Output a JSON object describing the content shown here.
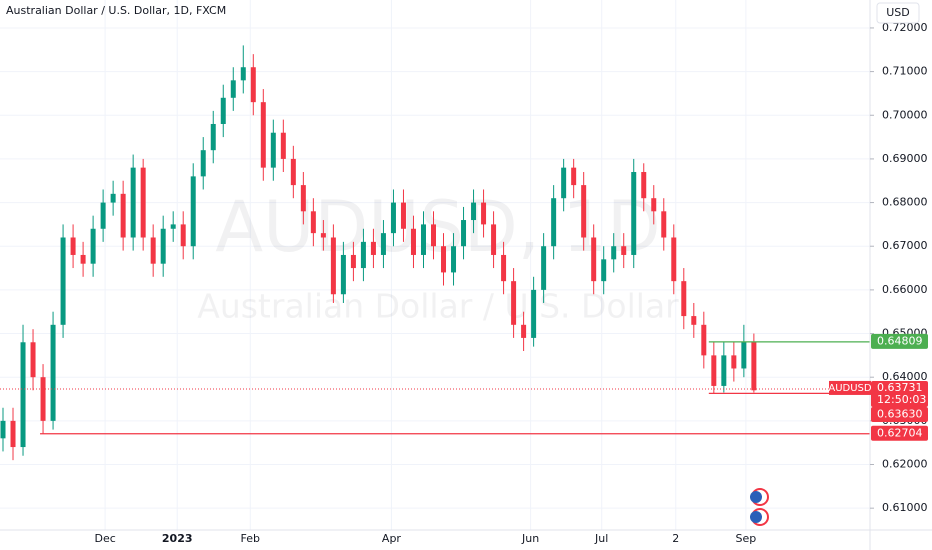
{
  "chart_data": {
    "type": "candlestick",
    "title": "Australian Dollar / U.S. Dollar, 1D, FXCM",
    "watermark": "AUDUSD, 1D",
    "watermark_subtitle": "Australian Dollar / U.S. Dollar",
    "currency": "USD",
    "up_color": "#089981",
    "down_color": "#f23645",
    "grid": true,
    "open": [
      0.626,
      0.63,
      0.624,
      0.648,
      0.64,
      0.63,
      0.652,
      0.672,
      0.668,
      0.666,
      0.674,
      0.68,
      0.682,
      0.672,
      0.688,
      0.672,
      0.666,
      0.674,
      0.675,
      0.67,
      0.686,
      0.692,
      0.698,
      0.704,
      0.708,
      0.711,
      0.703,
      0.688,
      0.696,
      0.69,
      0.684,
      0.678,
      0.673,
      0.672,
      0.659,
      0.668,
      0.665,
      0.671,
      0.668,
      0.673,
      0.68,
      0.674,
      0.668,
      0.675,
      0.67,
      0.664,
      0.67,
      0.676,
      0.68,
      0.675,
      0.668,
      0.662,
      0.652,
      0.649,
      0.66,
      0.67,
      0.681,
      0.688,
      0.684,
      0.672,
      0.662,
      0.667,
      0.67,
      0.668,
      0.687,
      0.681,
      0.678,
      0.672,
      0.662,
      0.654,
      0.652,
      0.645,
      0.638,
      0.645,
      0.642,
      0.648
    ],
    "high": [
      0.633,
      0.633,
      0.652,
      0.651,
      0.643,
      0.655,
      0.675,
      0.675,
      0.671,
      0.677,
      0.683,
      0.685,
      0.685,
      0.691,
      0.69,
      0.675,
      0.677,
      0.678,
      0.678,
      0.689,
      0.695,
      0.701,
      0.707,
      0.711,
      0.716,
      0.714,
      0.706,
      0.699,
      0.699,
      0.693,
      0.687,
      0.681,
      0.676,
      0.675,
      0.671,
      0.671,
      0.674,
      0.674,
      0.676,
      0.683,
      0.683,
      0.677,
      0.678,
      0.678,
      0.673,
      0.673,
      0.679,
      0.683,
      0.683,
      0.678,
      0.671,
      0.665,
      0.655,
      0.663,
      0.673,
      0.684,
      0.69,
      0.69,
      0.687,
      0.675,
      0.67,
      0.673,
      0.673,
      0.69,
      0.689,
      0.684,
      0.681,
      0.675,
      0.665,
      0.657,
      0.655,
      0.648,
      0.648,
      0.648,
      0.652,
      0.65
    ],
    "low": [
      0.623,
      0.621,
      0.622,
      0.637,
      0.627,
      0.628,
      0.649,
      0.665,
      0.663,
      0.663,
      0.671,
      0.677,
      0.669,
      0.669,
      0.669,
      0.663,
      0.663,
      0.671,
      0.667,
      0.667,
      0.683,
      0.689,
      0.695,
      0.701,
      0.705,
      0.7,
      0.685,
      0.685,
      0.687,
      0.681,
      0.675,
      0.67,
      0.669,
      0.657,
      0.657,
      0.662,
      0.662,
      0.665,
      0.665,
      0.67,
      0.671,
      0.665,
      0.665,
      0.667,
      0.661,
      0.661,
      0.667,
      0.673,
      0.672,
      0.665,
      0.659,
      0.649,
      0.646,
      0.647,
      0.657,
      0.667,
      0.678,
      0.681,
      0.669,
      0.659,
      0.659,
      0.664,
      0.665,
      0.665,
      0.678,
      0.675,
      0.669,
      0.659,
      0.651,
      0.649,
      0.642,
      0.6363,
      0.6365,
      0.639,
      0.64,
      0.6365
    ],
    "close": [
      0.63,
      0.624,
      0.648,
      0.64,
      0.63,
      0.652,
      0.672,
      0.668,
      0.666,
      0.674,
      0.68,
      0.682,
      0.672,
      0.688,
      0.672,
      0.666,
      0.674,
      0.675,
      0.67,
      0.686,
      0.692,
      0.698,
      0.704,
      0.708,
      0.711,
      0.703,
      0.688,
      0.696,
      0.69,
      0.684,
      0.678,
      0.673,
      0.672,
      0.659,
      0.668,
      0.665,
      0.671,
      0.668,
      0.673,
      0.68,
      0.674,
      0.668,
      0.675,
      0.67,
      0.664,
      0.67,
      0.676,
      0.68,
      0.675,
      0.668,
      0.662,
      0.652,
      0.649,
      0.66,
      0.67,
      0.681,
      0.688,
      0.684,
      0.672,
      0.662,
      0.667,
      0.67,
      0.668,
      0.687,
      0.681,
      0.678,
      0.672,
      0.662,
      0.654,
      0.652,
      0.645,
      0.638,
      0.645,
      0.642,
      0.648,
      0.637
    ],
    "xlim": [
      -0.3,
      86.4
    ],
    "xticks": [
      {
        "value": 10.2,
        "label": "Dec"
      },
      {
        "value": 17.4,
        "label": "2023"
      },
      {
        "value": 24.7,
        "label": "Feb"
      },
      {
        "value": 38.8,
        "label": "Apr"
      },
      {
        "value": 52.7,
        "label": "Jun"
      },
      {
        "value": 59.8,
        "label": "Jul"
      },
      {
        "value": 67.2,
        "label": "2"
      },
      {
        "value": 74.2,
        "label": "Sep"
      }
    ],
    "ylim": [
      0.605,
      0.7264
    ],
    "yticks": [
      {
        "value": 0.61,
        "label": "0.61000"
      },
      {
        "value": 0.62,
        "label": "0.62000"
      },
      {
        "value": 0.63,
        "label": "0.63000"
      },
      {
        "value": 0.64,
        "label": "0.64000"
      },
      {
        "value": 0.65,
        "label": "0.65000"
      },
      {
        "value": 0.66,
        "label": "0.66000"
      },
      {
        "value": 0.67,
        "label": "0.67000"
      },
      {
        "value": 0.68,
        "label": "0.68000"
      },
      {
        "value": 0.69,
        "label": "0.69000"
      },
      {
        "value": 0.7,
        "label": "0.70000"
      },
      {
        "value": 0.71,
        "label": "0.71000"
      },
      {
        "value": 0.72,
        "label": "0.72000"
      }
    ],
    "levels": [
      {
        "value": 0.64809,
        "label": "0.64809",
        "color": "#4caf50",
        "from": 70.5
      },
      {
        "value": 0.6363,
        "label": "0.63630",
        "color": "#f23645",
        "from": 70.5
      },
      {
        "value": 0.62704,
        "label": "0.62704",
        "color": "#f23645",
        "from": 3.7
      }
    ],
    "last": {
      "value": 0.63731,
      "label": "0.63731",
      "symbol": "AUDUSD",
      "countdown": "12:50:03",
      "color": "#f23645"
    }
  }
}
